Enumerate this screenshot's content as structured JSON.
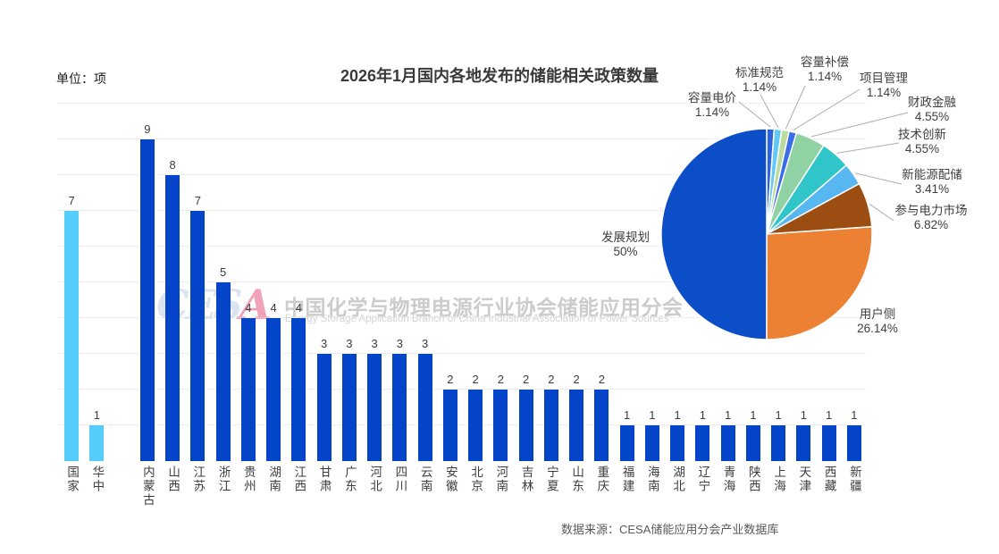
{
  "page": {
    "title": "2026年1月国内各地发布的储能相关政策数量",
    "unit_label": "单位：项",
    "source_label": "数据来源：CESA储能应用分会产业数据库"
  },
  "watermark": {
    "logo_main": "CES",
    "logo_accent": "A",
    "org_cn": "中国化学与物理电源行业协会储能应用分会",
    "org_en": "Energy Storage Application Branch of China Industrial Association of Power Sources"
  },
  "colors": {
    "bar_national": "#55ccfa",
    "bar_province": "#0444c8",
    "grid": "#e3e3e3"
  },
  "chart_data": [
    {
      "type": "bar",
      "title": "2026年1月国内各地发布的储能相关政策数量",
      "ylabel": "单位：项",
      "ylim": [
        0,
        10
      ],
      "grid": true,
      "groups": [
        {
          "name": "national-regional",
          "color": "#55ccfa",
          "categories": [
            "国家",
            "华中"
          ],
          "values": [
            7,
            1
          ]
        },
        {
          "name": "provinces",
          "color": "#0444c8",
          "categories": [
            "内蒙古",
            "山西",
            "江苏",
            "浙江",
            "贵州",
            "湖南",
            "江西",
            "甘肃",
            "广东",
            "河北",
            "四川",
            "云南",
            "安徽",
            "北京",
            "河南",
            "吉林",
            "宁夏",
            "山东",
            "重庆",
            "福建",
            "海南",
            "湖北",
            "辽宁",
            "青海",
            "陕西",
            "上海",
            "天津",
            "西藏",
            "新疆"
          ],
          "values": [
            9,
            8,
            7,
            5,
            4,
            4,
            4,
            3,
            3,
            3,
            3,
            3,
            2,
            2,
            2,
            2,
            2,
            2,
            2,
            1,
            1,
            1,
            1,
            1,
            1,
            1,
            1,
            1,
            1
          ]
        }
      ]
    },
    {
      "type": "pie",
      "start_angle_deg": 0,
      "direction": "clockwise",
      "slices": [
        {
          "label": "容量电价",
          "pct": "1.14%",
          "value": 1.14,
          "color": "#2e63de"
        },
        {
          "label": "标准规范",
          "pct": "1.14%",
          "value": 1.14,
          "color": "#63c8f3"
        },
        {
          "label": "容量补偿",
          "pct": "1.14%",
          "value": 1.14,
          "color": "#bcdc9e"
        },
        {
          "label": "项目管理",
          "pct": "1.14%",
          "value": 1.14,
          "color": "#3a6ee8"
        },
        {
          "label": "财政金融",
          "pct": "4.55%",
          "value": 4.55,
          "color": "#90d2a4"
        },
        {
          "label": "技术创新",
          "pct": "4.55%",
          "value": 4.55,
          "color": "#30c5c8"
        },
        {
          "label": "新能源配储",
          "pct": "3.41%",
          "value": 3.41,
          "color": "#57b7f0"
        },
        {
          "label": "参与电力市场",
          "pct": "6.82%",
          "value": 6.82,
          "color": "#9b4d12"
        },
        {
          "label": "用户侧",
          "pct": "26.14%",
          "value": 26.14,
          "color": "#ec8133"
        },
        {
          "label": "发展规划",
          "pct": "50%",
          "value": 50.0,
          "color": "#0b4ec8"
        }
      ]
    }
  ]
}
